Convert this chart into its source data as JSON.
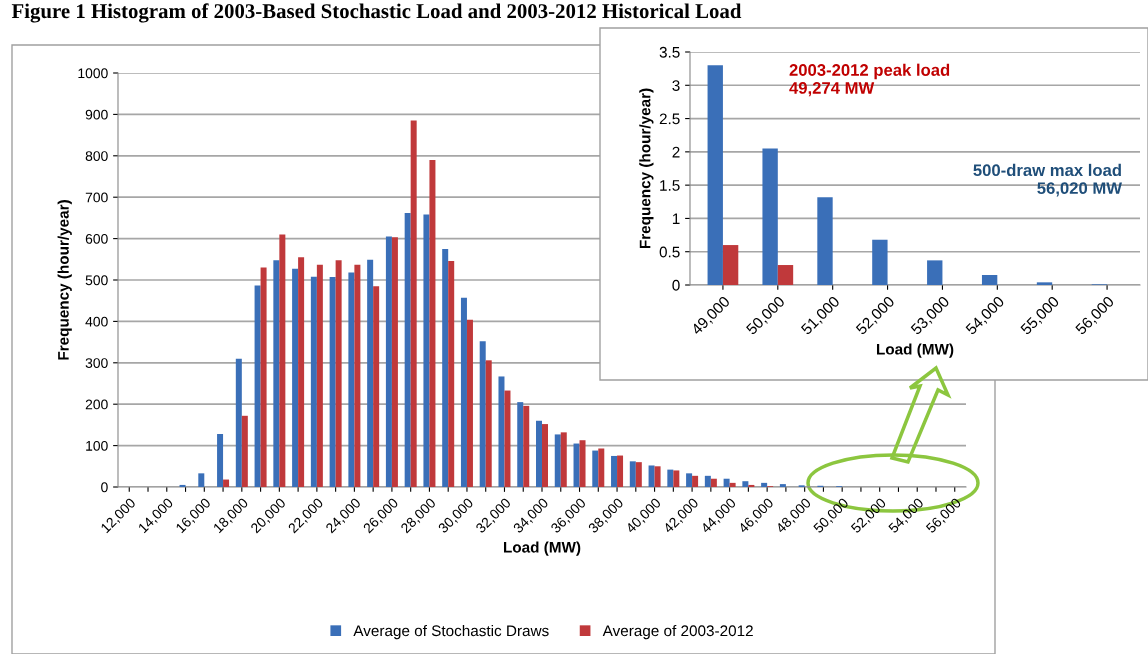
{
  "chart_data": [
    {
      "type": "bar",
      "title": "Figure 1 Histogram of 2003-Based Stochastic Load and 2003-2012 Historical Load",
      "xlabel": "Load (MW)",
      "ylabel": "Frequency (hour/year)",
      "categories": [
        "12,000",
        null,
        "14,000",
        null,
        "16,000",
        null,
        "18,000",
        null,
        "20,000",
        null,
        "22,000",
        null,
        "24,000",
        null,
        "26,000",
        null,
        "28,000",
        null,
        "30,000",
        null,
        "32,000",
        null,
        "34,000",
        null,
        "36,000",
        null,
        "38,000",
        null,
        "40,000",
        null,
        "42,000",
        null,
        "44,000",
        null,
        "46,000",
        null,
        "48,000",
        null,
        "50,000",
        null,
        "52,000",
        null,
        "54,000",
        null,
        "56,000"
      ],
      "series": [
        {
          "name": "Average of Stochastic Draws",
          "color": "#3a6fb8",
          "values": [
            0,
            0,
            0,
            5,
            33,
            128,
            310,
            487,
            548,
            527,
            508,
            507,
            518,
            549,
            605,
            662,
            658,
            575,
            457,
            352,
            267,
            205,
            160,
            127,
            105,
            88,
            75,
            62,
            52,
            42,
            33,
            27,
            20,
            14,
            10,
            7,
            4,
            3,
            2,
            null,
            null,
            0,
            0,
            0,
            0
          ]
        },
        {
          "name": "Average of 2003-2012",
          "color": "#c0393b",
          "values": [
            0,
            0,
            0,
            0,
            0,
            18,
            172,
            530,
            610,
            555,
            537,
            548,
            537,
            485,
            603,
            885,
            790,
            546,
            404,
            306,
            233,
            196,
            152,
            132,
            113,
            93,
            76,
            60,
            50,
            40,
            27,
            20,
            10,
            5,
            2,
            null,
            0,
            null,
            0,
            0,
            0,
            0,
            0,
            0,
            0
          ]
        }
      ],
      "ylim": [
        0,
        1000
      ],
      "yticks": [
        0,
        100,
        200,
        300,
        400,
        500,
        600,
        700,
        800,
        900,
        1000
      ],
      "grid": "y",
      "legend": "bottom"
    },
    {
      "type": "bar",
      "xlabel": "Load (MW)",
      "ylabel": "Frequency (hour/year)",
      "categories": [
        "49,000",
        "50,000",
        "51,000",
        "52,000",
        "53,000",
        "54,000",
        "55,000",
        "56,000"
      ],
      "series": [
        {
          "color": "#3a6fb8",
          "values": [
            3.3,
            2.05,
            1.32,
            0.68,
            0.37,
            0.15,
            0.04,
            0.01
          ]
        },
        {
          "color": "#c0393b",
          "values": [
            0.6,
            0.3,
            0,
            0,
            0,
            0,
            0,
            0
          ]
        }
      ],
      "ylim": [
        0,
        3.5
      ],
      "yticks": [
        0,
        0.5,
        1,
        1.5,
        2,
        2.5,
        3,
        3.5
      ],
      "grid": "y",
      "annotations": [
        "2003-2012 peak load\n49,274 MW",
        "500-draw max load\n56,020 MW"
      ]
    }
  ]
}
